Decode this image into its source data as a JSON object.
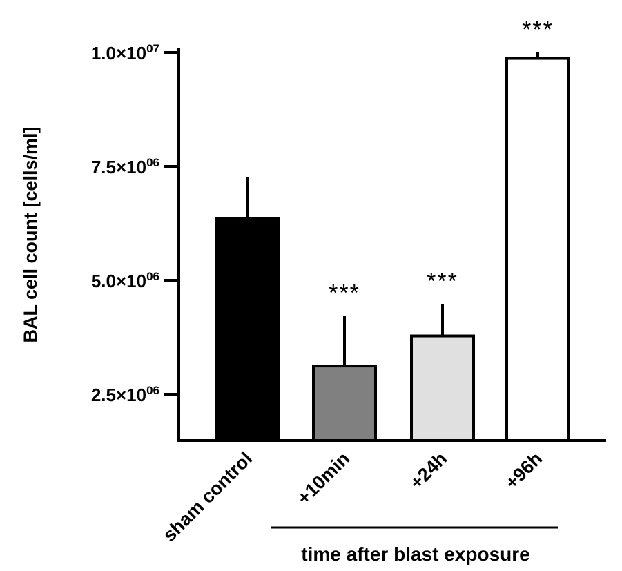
{
  "chart_data": {
    "type": "bar",
    "ylabel": "BAL cell count [cells/ml]",
    "ylim": [
      1500000,
      10000000
    ],
    "yticks": [
      {
        "value": 2500000,
        "mantissa": "2.5×10",
        "exp": "06"
      },
      {
        "value": 5000000,
        "mantissa": "5.0×10",
        "exp": "06"
      },
      {
        "value": 7500000,
        "mantissa": "7.5×10",
        "exp": "06"
      },
      {
        "value": 10000000,
        "mantissa": "1.0×10",
        "exp": "07"
      }
    ],
    "categories": [
      "sham control",
      "+10min",
      "+24h",
      "+96h"
    ],
    "values": [
      6350000,
      3120000,
      3780000,
      9870000
    ],
    "errors": [
      920000,
      1100000,
      700000,
      130000
    ],
    "bar_colors": [
      "#000000",
      "#808080",
      "#e0e0e0",
      "#ffffff"
    ],
    "significance": [
      "",
      "***",
      "***",
      "***"
    ],
    "group_label": "time after blast exposure",
    "grid": false
  }
}
